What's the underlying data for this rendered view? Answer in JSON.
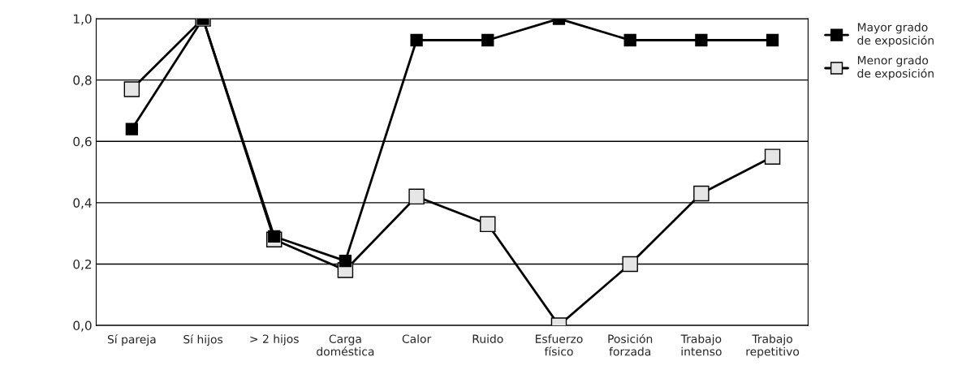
{
  "chart_data": {
    "type": "line",
    "categories": [
      "Sí pareja",
      "Sí hijos",
      "> 2 hijos",
      "Carga\ndoméstica",
      "Calor",
      "Ruido",
      "Esfuerzo\nfísico",
      "Posición\nforzada",
      "Trabajo\nintenso",
      "Trabajo\nrepetitivo"
    ],
    "series": [
      {
        "name": "Mayor grado\nde exposición",
        "color": "#000000",
        "values": [
          0.64,
          1.0,
          0.29,
          0.21,
          0.93,
          0.93,
          1.0,
          0.93,
          0.93,
          0.93
        ]
      },
      {
        "name": "Menor grado\nde exposición",
        "color": "#e6e6e6",
        "values": [
          0.77,
          1.0,
          0.28,
          0.18,
          0.42,
          0.33,
          0.0,
          0.2,
          0.43,
          0.55
        ]
      }
    ],
    "ylim": [
      0,
      1
    ],
    "yticks": [
      {
        "value": 0,
        "label": "0,0"
      },
      {
        "value": 0.2,
        "label": "0,2"
      },
      {
        "value": 0.4,
        "label": "0,4"
      },
      {
        "value": 0.6,
        "label": "0,6"
      },
      {
        "value": 0.8,
        "label": "0,8"
      },
      {
        "value": 1.0,
        "label": "1,0"
      }
    ],
    "grid": "y",
    "legend": "top right",
    "marker": "square",
    "line_style": "solid"
  }
}
